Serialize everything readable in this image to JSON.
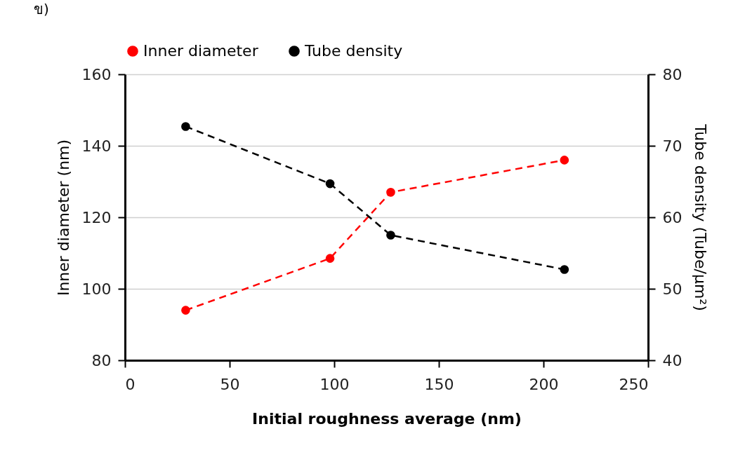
{
  "chart_data": {
    "type": "line",
    "annotations": [
      "ข)"
    ],
    "xlabel": "Initial roughness average (nm)",
    "ylabel": "Inner diameter (nm)",
    "y2label": "Tube density (Tube/μm²)",
    "series": [
      {
        "name": "Inner diameter",
        "color": "#ff0000",
        "x": [
          29,
          98,
          127,
          210
        ],
        "values": [
          94,
          108.5,
          127,
          136
        ]
      },
      {
        "name": "Tube density",
        "color": "#000000",
        "axis": "y2",
        "x": [
          29,
          98,
          127,
          210
        ],
        "values": [
          72.7,
          64.7,
          57.5,
          52.7
        ]
      }
    ],
    "xlim": [
      0,
      250
    ],
    "xticks": [
      0,
      50,
      100,
      150,
      200,
      250
    ],
    "ylim": [
      80,
      160
    ],
    "yticks": [
      80,
      100,
      120,
      140,
      160
    ],
    "y2lim": [
      40,
      80
    ],
    "y2ticks": [
      40,
      50,
      60,
      70,
      80
    ],
    "grid": "y",
    "legend": "top",
    "marker": "circle",
    "line_style": "dashed"
  }
}
